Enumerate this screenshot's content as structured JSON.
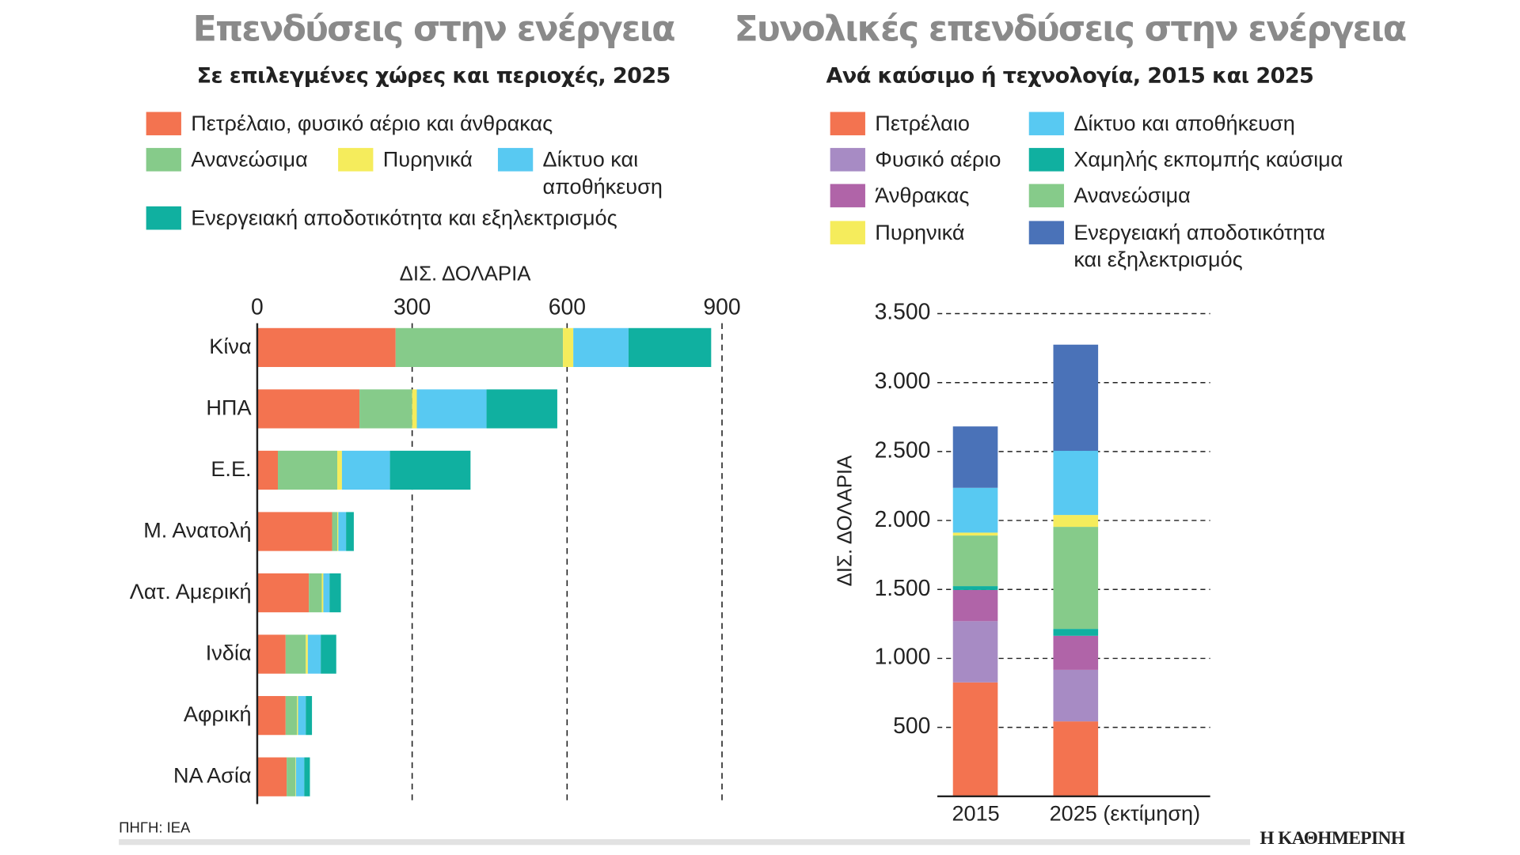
{
  "left": {
    "title": "Επενδύσεις στην ενέργεια",
    "subtitle": "Σε επιλεγμένες χώρες και περιοχές, 2025",
    "legend": [
      "Πετρέλαιο, φυσικό αέριο και άνθρακας",
      "Ανανεώσιμα",
      "Πυρηνικά",
      "Δίκτυο και αποθήκευση",
      "Ενεργειακή αποδοτικότητα και εξηλεκτρισμός"
    ]
  },
  "right": {
    "title": "Συνολικές επενδύσεις στην ενέργεια",
    "subtitle": "Ανά καύσιμο ή τεχνολογία, 2015 και 2025",
    "legend": [
      "Πετρέλαιο",
      "Φυσικό αέριο",
      "Άνθρακας",
      "Πυρηνικά",
      "Δίκτυο και αποθήκευση",
      "Χαμηλής εκπομπής καύσιμα",
      "Ανανεώσιμα",
      "Ενεργειακή αποδοτικότητα"
    ],
    "legend_ee_line2": "και εξηλεκτρισμός"
  },
  "footer": {
    "source": "ΠΗΓΗ: IEA",
    "logo": "Η ΚΑΘΗΜΕΡΙΝΗ"
  },
  "chart_data": [
    {
      "type": "bar",
      "orientation": "horizontal",
      "stacked": true,
      "title": "Επενδύσεις στην ενέργεια",
      "xlabel": "ΔΙΣ. ΔΟΛΑΡΙΑ",
      "xlim": [
        0,
        900
      ],
      "xticks": [
        "0",
        "300",
        "600",
        "900"
      ],
      "categories": [
        "Κίνα",
        "ΗΠΑ",
        "Ε.Ε.",
        "Μ. Ανατολή",
        "Λατ. Αμερική",
        "Ινδία",
        "Αφρική",
        "ΝΑ Ασία"
      ],
      "series": [
        {
          "name": "Πετρέλαιο, φυσικό αέριο και άνθρακας",
          "color": "#f37350",
          "values": [
            268,
            198,
            40,
            145,
            100,
            55,
            55,
            57
          ]
        },
        {
          "name": "Ανανεώσιμα",
          "color": "#86cb8a",
          "values": [
            324,
            102,
            115,
            10,
            25,
            39,
            22,
            17
          ]
        },
        {
          "name": "Πυρηνικά",
          "color": "#f5ec5c",
          "values": [
            20,
            9,
            9,
            2,
            3,
            4,
            2,
            1
          ]
        },
        {
          "name": "Δίκτυο και αποθήκευση",
          "color": "#58c9f2",
          "values": [
            107,
            135,
            93,
            15,
            12,
            25,
            15,
            16
          ]
        },
        {
          "name": "Ενεργειακή αποδοτικότητα και εξηλεκτρισμός",
          "color": "#10b0a0",
          "values": [
            160,
            137,
            156,
            15,
            22,
            30,
            12,
            11
          ]
        }
      ]
    },
    {
      "type": "bar",
      "stacked": true,
      "title": "Συνολικές επενδύσεις στην ενέργεια",
      "ylabel": "ΔΙΣ. ΔΟΛΑΡΙΑ",
      "ylim": [
        0,
        3500
      ],
      "yticks": [
        "500",
        "1.000",
        "1.500",
        "2.000",
        "2.500",
        "3.000",
        "3.500"
      ],
      "categories": [
        "2015",
        "2025 (εκτίμηση)"
      ],
      "series": [
        {
          "name": "Πετρέλαιο",
          "color": "#f37350",
          "values": [
            826,
            543
          ]
        },
        {
          "name": "Φυσικό αέριο",
          "color": "#a78bc4",
          "values": [
            444,
            374
          ]
        },
        {
          "name": "Άνθρακας",
          "color": "#b064a8",
          "values": [
            226,
            247
          ]
        },
        {
          "name": "Χαμηλής εκπομπής καύσιμα",
          "color": "#10b0a0",
          "values": [
            28,
            50
          ]
        },
        {
          "name": "Ανανεώσιμα",
          "color": "#86cb8a",
          "values": [
            367,
            740
          ]
        },
        {
          "name": "Πυρηνικά",
          "color": "#f5ec5c",
          "values": [
            21,
            86
          ]
        },
        {
          "name": "Δίκτυο και αποθήκευση",
          "color": "#58c9f2",
          "values": [
            325,
            465
          ]
        },
        {
          "name": "Ενεργειακή αποδοτικότητα και εξηλεκτρισμός",
          "color": "#4a72b8",
          "values": [
            445,
            770
          ]
        }
      ]
    }
  ]
}
